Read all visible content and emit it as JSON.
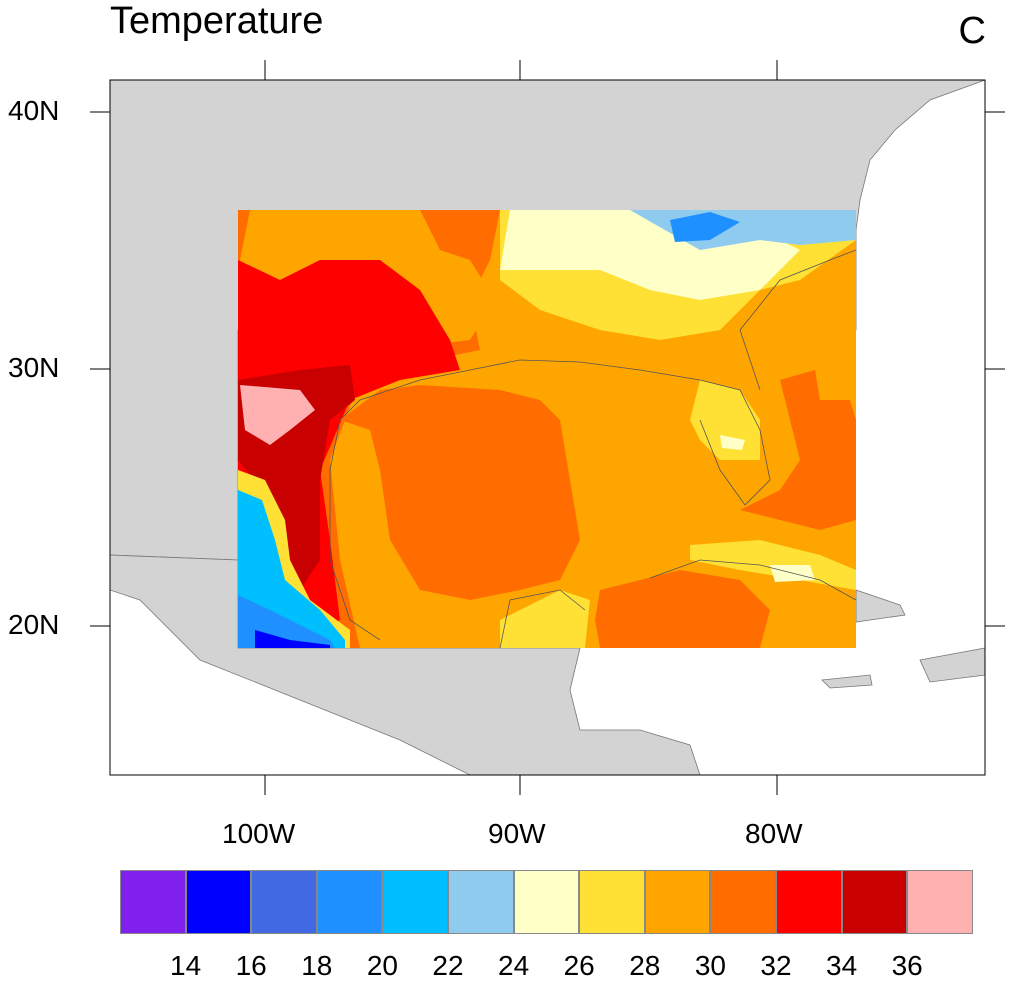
{
  "title": "Temperature",
  "units": "C",
  "lat_labels": [
    "40N",
    "30N",
    "20N"
  ],
  "lon_labels": [
    "100W",
    "90W",
    "80W"
  ],
  "colorbar": {
    "colors": [
      "#8020ee",
      "#0000ff",
      "#4169e1",
      "#1e90ff",
      "#00bfff",
      "#8ecbef",
      "#ffffc8",
      "#ffe135",
      "#ffa500",
      "#ff6d00",
      "#ff0000",
      "#c80000",
      "#ffb0b0"
    ],
    "labels": [
      "14",
      "16",
      "18",
      "20",
      "22",
      "24",
      "26",
      "28",
      "30",
      "32",
      "34",
      "36"
    ]
  }
}
